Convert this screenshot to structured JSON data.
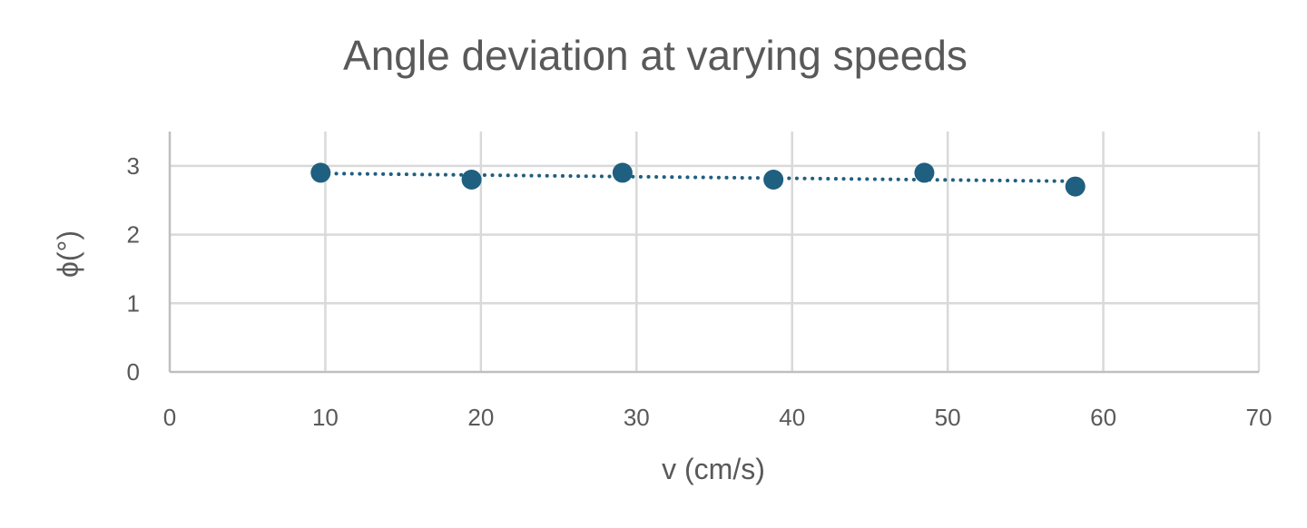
{
  "chart_data": {
    "type": "scatter",
    "title": "Angle deviation at varying speeds",
    "xlabel": "v (cm/s)",
    "ylabel": "ϕ(°)",
    "xlim": [
      0,
      70
    ],
    "ylim": [
      0,
      3.5
    ],
    "x_ticks": [
      0,
      10,
      20,
      30,
      40,
      50,
      60,
      70
    ],
    "y_ticks": [
      0,
      1,
      2,
      3
    ],
    "grid": true,
    "legend": "none",
    "trendline": {
      "style": "dotted",
      "color": "#1f5f7f"
    },
    "series": [
      {
        "color": "#1f5f7f",
        "x": [
          9.7,
          19.4,
          29.1,
          38.8,
          48.5,
          58.2
        ],
        "y": [
          2.9,
          2.8,
          2.9,
          2.8,
          2.9,
          2.7
        ]
      }
    ]
  }
}
